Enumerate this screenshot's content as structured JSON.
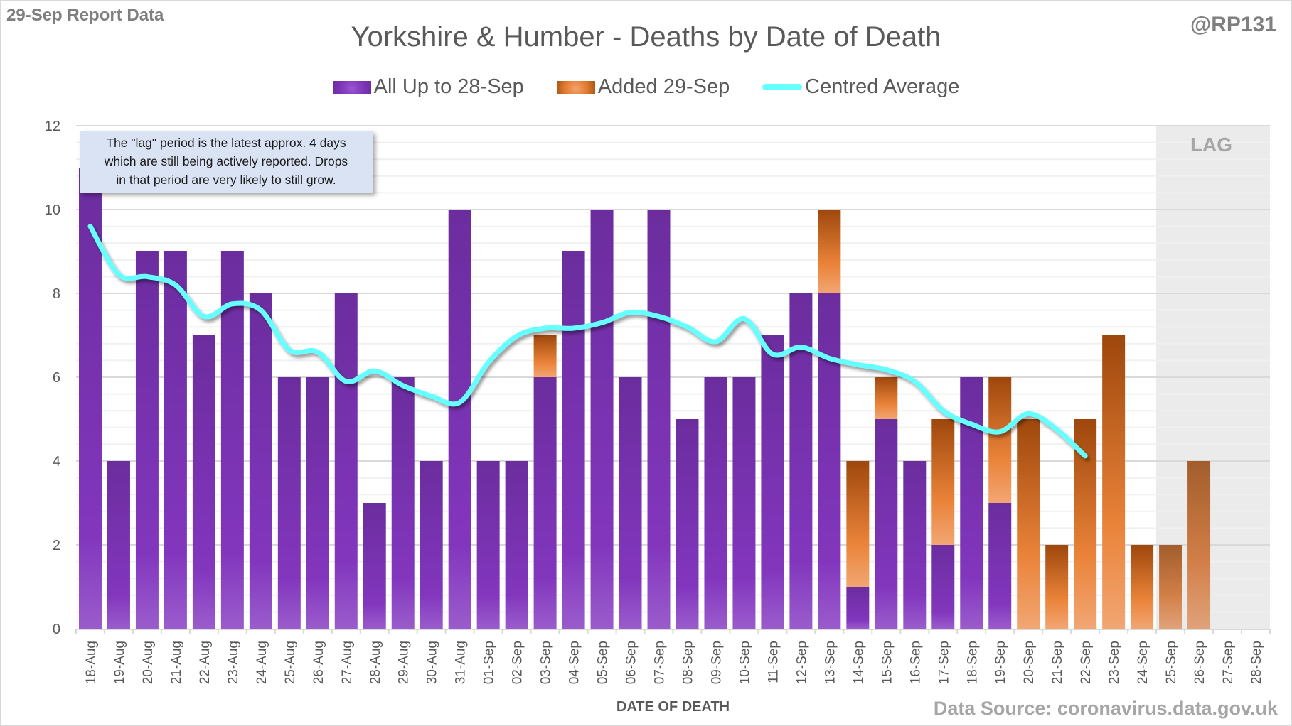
{
  "header": {
    "report_label": "29-Sep Report Data",
    "handle": "@RP131"
  },
  "note": {
    "line1": "The \"lag\" period is the latest approx. 4 days",
    "line2": "which are still being actively reported.  Drops",
    "line3": "in that period are very likely to still grow."
  },
  "lag_label": "LAG",
  "footer": {
    "source": "Data Source: coronavirus.data.gov.uk"
  },
  "colors": {
    "existing": "#7030a0",
    "added": "#e07a32",
    "average": "#66ffff",
    "lag_shade": "#ebebeb"
  },
  "chart_data": {
    "type": "bar",
    "stacked": true,
    "title": "Yorkshire & Humber - Deaths by Date of Death",
    "xlabel": "DATE OF DEATH",
    "ylabel": "",
    "ylim": [
      0,
      12
    ],
    "yticks": [
      0,
      2,
      4,
      6,
      8,
      10,
      12
    ],
    "grid": true,
    "legend_position": "top-center",
    "lag_region": [
      "25-Sep",
      "28-Sep"
    ],
    "categories": [
      "18-Aug",
      "19-Aug",
      "20-Aug",
      "21-Aug",
      "22-Aug",
      "23-Aug",
      "24-Aug",
      "25-Aug",
      "26-Aug",
      "27-Aug",
      "28-Aug",
      "29-Aug",
      "30-Aug",
      "31-Aug",
      "01-Sep",
      "02-Sep",
      "03-Sep",
      "04-Sep",
      "05-Sep",
      "06-Sep",
      "07-Sep",
      "08-Sep",
      "09-Sep",
      "10-Sep",
      "11-Sep",
      "12-Sep",
      "13-Sep",
      "14-Sep",
      "15-Sep",
      "16-Sep",
      "17-Sep",
      "18-Sep",
      "19-Sep",
      "20-Sep",
      "21-Sep",
      "22-Sep",
      "23-Sep",
      "24-Sep",
      "25-Sep",
      "26-Sep",
      "27-Sep",
      "28-Sep"
    ],
    "series": [
      {
        "name": "All Up to 28-Sep",
        "type": "bar",
        "values": [
          11,
          4,
          9,
          9,
          7,
          9,
          8,
          6,
          6,
          8,
          3,
          6,
          4,
          10,
          4,
          4,
          6,
          9,
          10,
          6,
          10,
          5,
          6,
          6,
          7,
          8,
          8,
          1,
          5,
          4,
          2,
          6,
          3,
          0,
          0,
          0,
          0,
          0,
          0,
          0,
          0,
          0
        ]
      },
      {
        "name": "Added 29-Sep",
        "type": "bar",
        "values": [
          0,
          0,
          0,
          0,
          0,
          0,
          0,
          0,
          0,
          0,
          0,
          0,
          0,
          0,
          0,
          0,
          1,
          0,
          0,
          0,
          0,
          0,
          0,
          0,
          0,
          0,
          2,
          3,
          1,
          0,
          3,
          0,
          3,
          5,
          2,
          5,
          7,
          2,
          2,
          4,
          0,
          0
        ]
      },
      {
        "name": "Centred Average",
        "type": "line",
        "values": [
          9.6,
          8.45,
          8.4,
          8.2,
          7.45,
          7.75,
          7.6,
          6.65,
          6.6,
          5.9,
          6.15,
          5.8,
          5.55,
          5.4,
          6.35,
          6.98,
          7.17,
          7.17,
          7.3,
          7.55,
          7.45,
          7.2,
          6.85,
          7.4,
          6.55,
          6.72,
          6.45,
          6.3,
          6.18,
          5.9,
          5.2,
          4.88,
          4.7,
          5.13,
          4.75,
          4.12,
          null,
          null,
          null,
          null,
          null,
          null
        ]
      }
    ]
  }
}
